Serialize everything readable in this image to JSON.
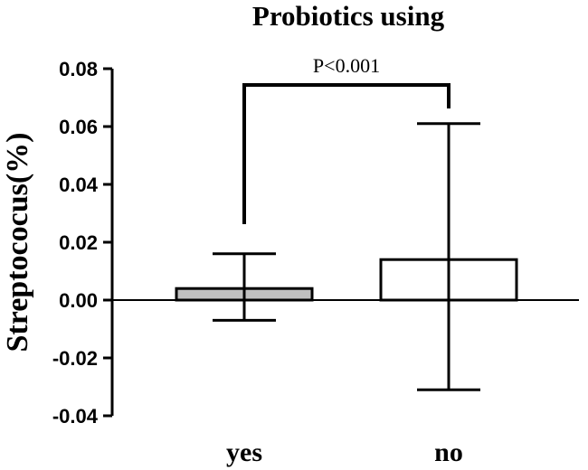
{
  "chart_data": {
    "type": "bar",
    "title": "Probiotics using",
    "xlabel": "",
    "ylabel": "Streptococus(%)",
    "categories": [
      "yes",
      "no"
    ],
    "values": [
      0.004,
      0.014
    ],
    "error_upper": [
      0.016,
      0.061
    ],
    "error_lower": [
      -0.007,
      -0.031
    ],
    "bar_colors": [
      "#c0c0c0",
      "#ffffff"
    ],
    "ylim": [
      -0.04,
      0.08
    ],
    "yticks": [
      "0.08",
      "0.06",
      "0.04",
      "0.02",
      "0.00",
      "-0.02",
      "-0.04"
    ],
    "ytick_values": [
      0.08,
      0.06,
      0.04,
      0.02,
      0.0,
      -0.02,
      -0.04
    ],
    "annotation": "P<0.001",
    "grid": false,
    "legend": "none"
  }
}
